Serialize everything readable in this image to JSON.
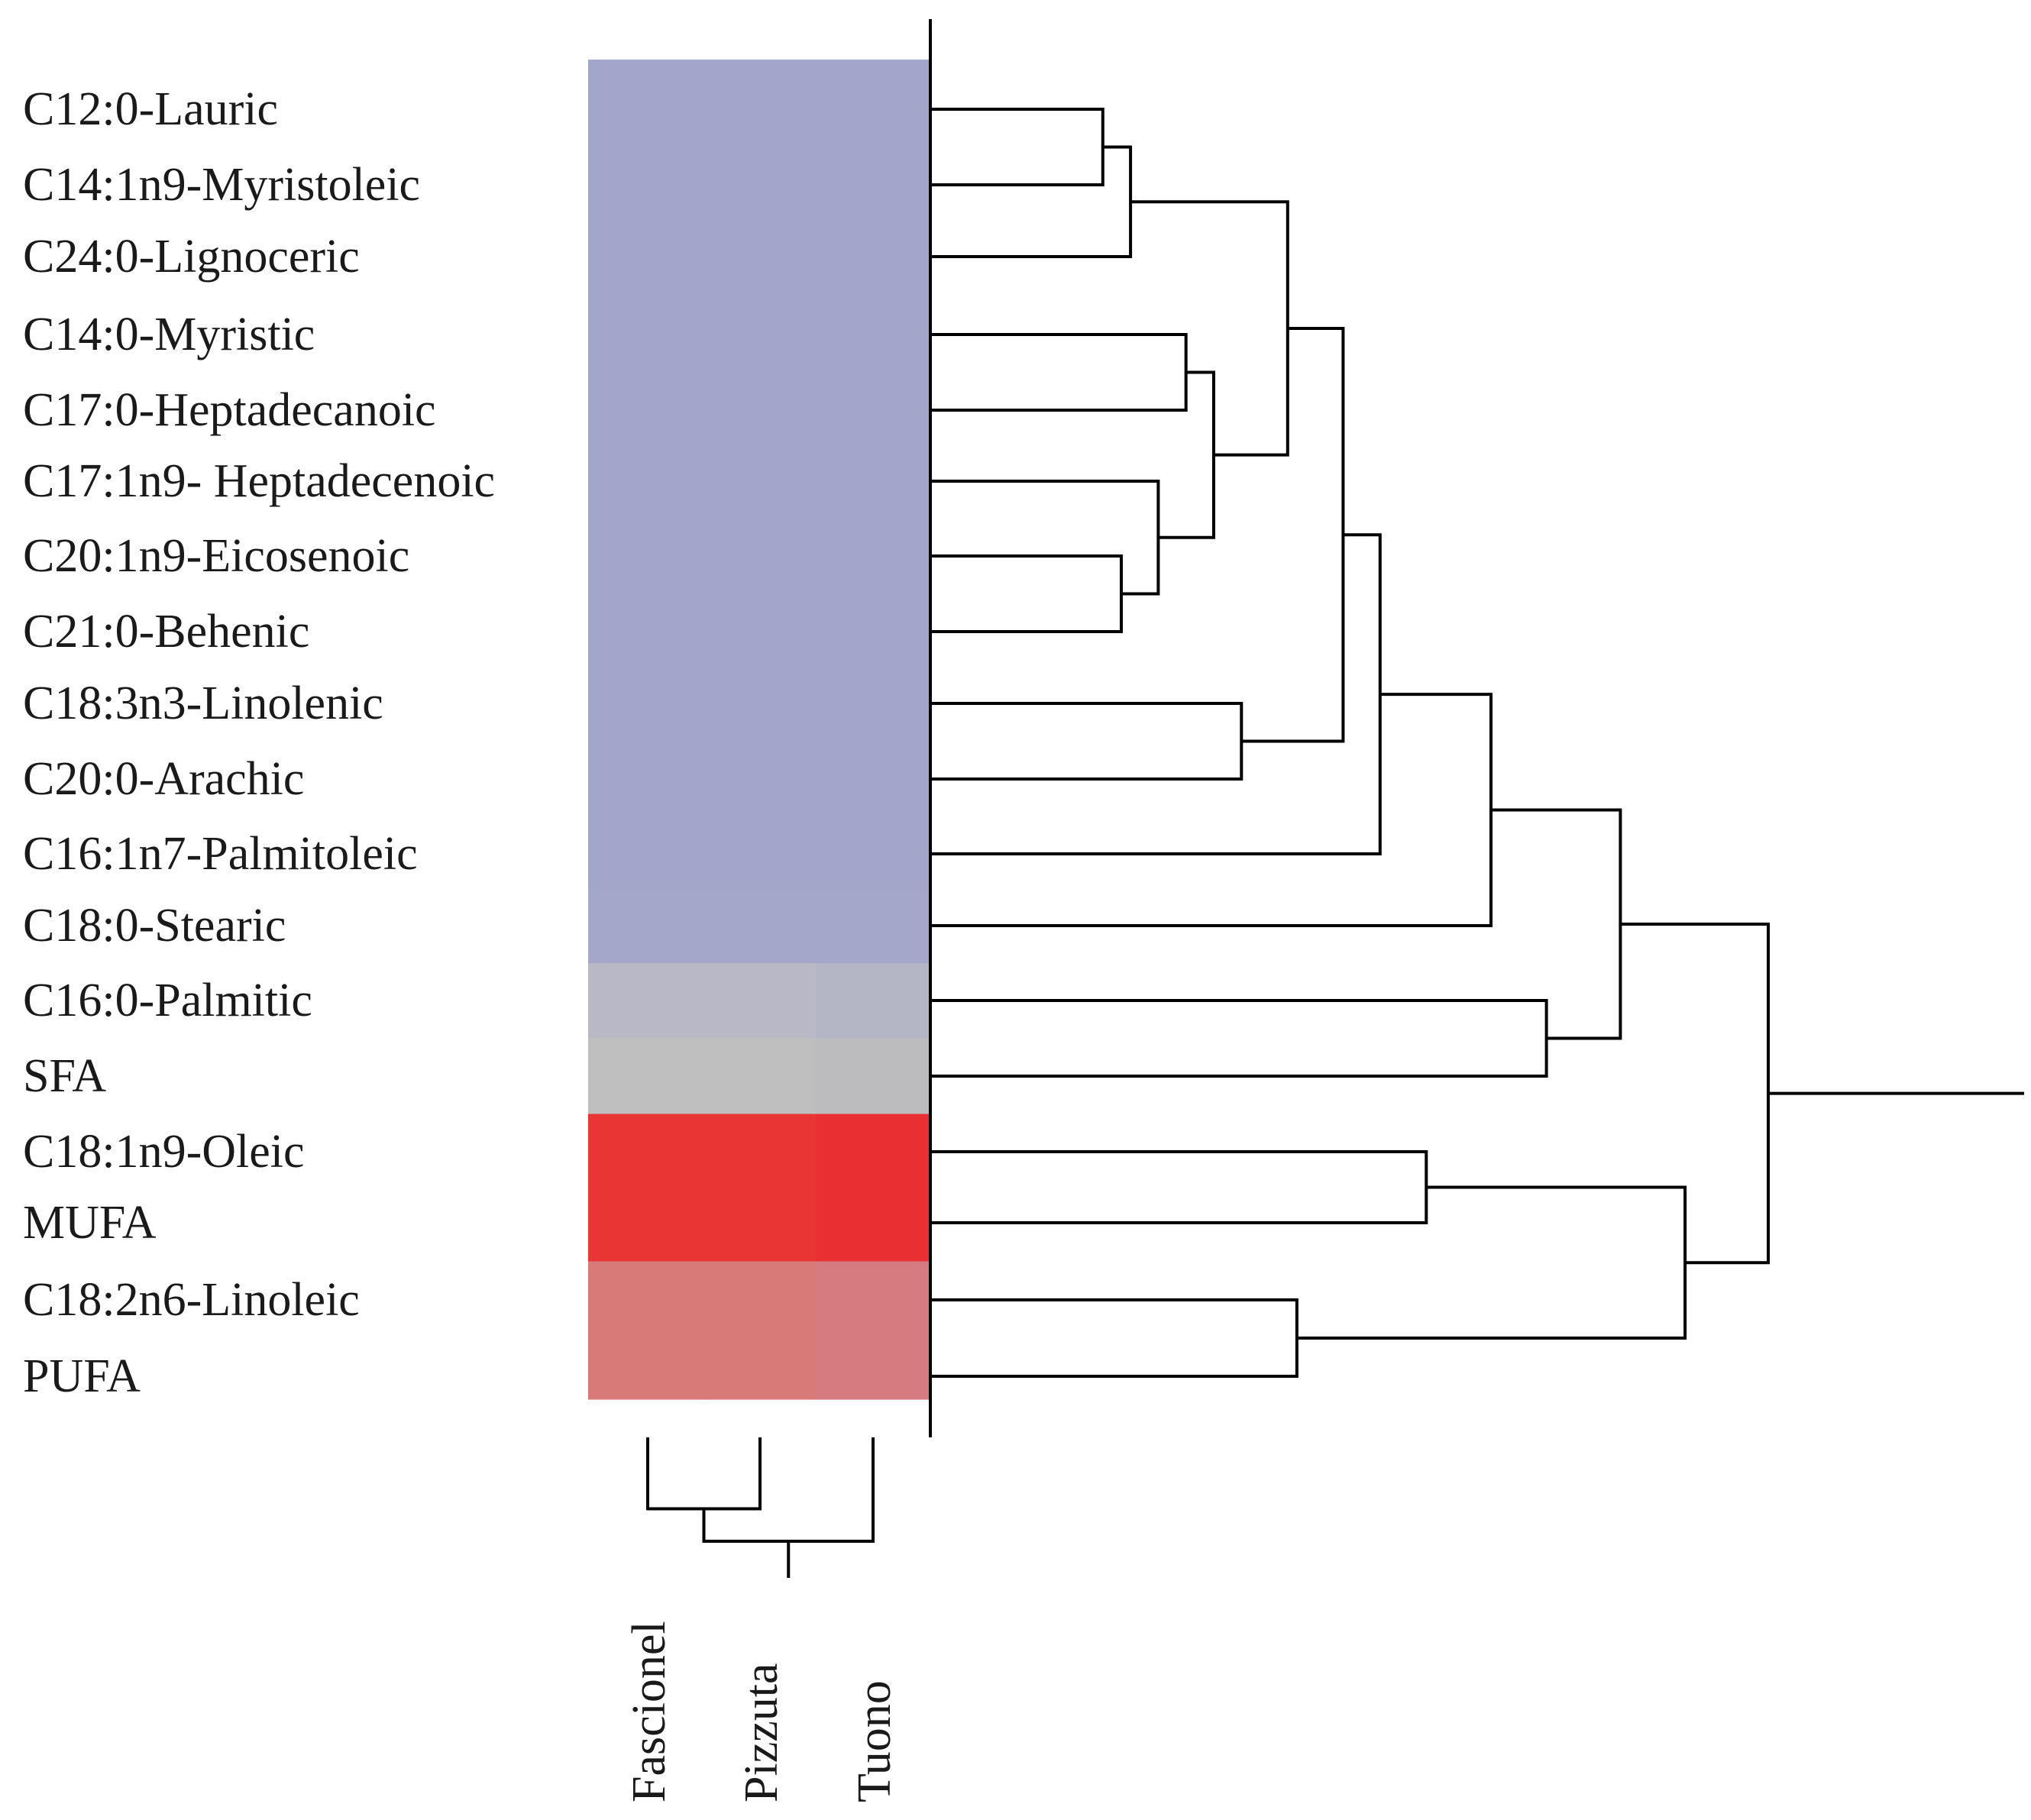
{
  "chart_data": {
    "type": "heatmap",
    "rows": [
      "C12:0-Lauric",
      "C14:1n9-Myristoleic",
      "C24:0-Lignoceric",
      "C14:0-Myristic",
      "C17:0-Heptadecanoic",
      "C17:1n9- Heptadecenoic",
      "C20:1n9-Eicosenoic",
      "C21:0-Behenic",
      "C18:3n3-Linolenic",
      "C20:0-Arachic",
      "C16:1n7-Palmitoleic",
      "C18:0-Stearic",
      "C16:0-Palmitic",
      "SFA",
      "C18:1n9-Oleic",
      "MUFA",
      "C18:2n6-Linoleic",
      "PUFA"
    ],
    "columns": [
      "Fascionel",
      "Pizzuta",
      "Tuono"
    ],
    "cell_colors": [
      [
        "#a3a6cb",
        "#a3a6cb",
        "#a3a6cb"
      ],
      [
        "#a3a6cb",
        "#a3a6cb",
        "#a3a6cb"
      ],
      [
        "#a3a6cb",
        "#a3a6cb",
        "#a3a6cb"
      ],
      [
        "#a3a6cb",
        "#a3a6cb",
        "#a3a6cb"
      ],
      [
        "#a3a6cb",
        "#a3a6cb",
        "#a3a6cb"
      ],
      [
        "#a3a6cb",
        "#a3a6cb",
        "#a3a6cb"
      ],
      [
        "#a3a6cb",
        "#a3a6cb",
        "#a3a6cb"
      ],
      [
        "#a3a6cb",
        "#a3a6cb",
        "#a3a6cb"
      ],
      [
        "#a3a6cb",
        "#a3a6cb",
        "#a3a6cb"
      ],
      [
        "#a3a6cb",
        "#a3a6cb",
        "#a3a6cb"
      ],
      [
        "#a3a6cb",
        "#a3a6cb",
        "#a3a6cb"
      ],
      [
        "#a4a7c9",
        "#a4a7c9",
        "#a4a7c9"
      ],
      [
        "#b8b8c6",
        "#b8b8c6",
        "#b5b6c5"
      ],
      [
        "#bfbfc0",
        "#bfbfc0",
        "#bcbcbf"
      ],
      [
        "#ea3535",
        "#ea3535",
        "#e92f32"
      ],
      [
        "#ea3535",
        "#ea3535",
        "#e92f32"
      ],
      [
        "#d77a78",
        "#d77a78",
        "#d67c80"
      ],
      [
        "#d77a78",
        "#d77a78",
        "#d67c80"
      ]
    ],
    "row_dendrogram": {
      "leaves_in_order": [
        "C12:0-Lauric",
        "C14:1n9-Myristoleic",
        "C24:0-Lignoceric",
        "C14:0-Myristic",
        "C17:0-Heptadecanoic",
        "C17:1n9- Heptadecenoic",
        "C20:1n9-Eicosenoic",
        "C21:0-Behenic",
        "C18:3n3-Linolenic",
        "C20:0-Arachic",
        "C16:1n7-Palmitoleic",
        "C18:0-Stearic",
        "C16:0-Palmitic",
        "SFA",
        "C18:1n9-Oleic",
        "MUFA",
        "C18:2n6-Linoleic",
        "PUFA"
      ],
      "merges": [
        {
          "a": "C12:0-Lauric",
          "b": "C14:1n9-Myristoleic",
          "height": 0.18
        },
        {
          "a": "(C12:0-Lauric,C14:1n9-Myristoleic)",
          "b": "C24:0-Lignoceric",
          "height": 0.21
        },
        {
          "a": "C14:0-Myristic",
          "b": "C17:0-Heptadecanoic",
          "height": 0.27
        },
        {
          "a": "C20:1n9-Eicosenoic",
          "b": "C21:0-Behenic",
          "height": 0.2
        },
        {
          "a": "C17:1n9- Heptadecenoic",
          "b": "(C20:1n9-Eicosenoic,C21:0-Behenic)",
          "height": 0.24
        },
        {
          "a": "(C14:0-Myristic,C17:0-Heptadecanoic)",
          "b": "(C17:1n9- Heptadecenoic,...)",
          "height": 0.3
        },
        {
          "a": "(C12:0-Lauric,...)",
          "b": "(C14:0-Myristic,...)",
          "height": 0.38
        },
        {
          "a": "C18:3n3-Linolenic",
          "b": "C20:0-Arachic",
          "height": 0.33
        },
        {
          "a": "(C12:0-Lauric,...,C21:0-Behenic)",
          "b": "(C18:3n3-Linolenic,C20:0-Arachic)",
          "height": 0.44
        },
        {
          "a": "(C12:0-Lauric,...,C20:0-Arachic)",
          "b": "C16:1n7-Palmitoleic",
          "height": 0.48
        },
        {
          "a": "(C12:0-Lauric,...,C16:1n7-Palmitoleic)",
          "b": "C18:0-Stearic",
          "height": 0.6
        },
        {
          "a": "C16:0-Palmitic",
          "b": "SFA",
          "height": 0.66
        },
        {
          "a": "(C12:0-Lauric,...,C18:0-Stearic)",
          "b": "(C16:0-Palmitic,SFA)",
          "height": 0.74
        },
        {
          "a": "C18:1n9-Oleic",
          "b": "MUFA",
          "height": 0.53
        },
        {
          "a": "C18:2n6-Linoleic",
          "b": "PUFA",
          "height": 0.39
        },
        {
          "a": "(C18:1n9-Oleic,MUFA)",
          "b": "(C18:2n6-Linoleic,PUFA)",
          "height": 0.81
        },
        {
          "a": "(C12:0-Lauric,...,SFA)",
          "b": "(C18:1n9-Oleic,...,PUFA)",
          "height": 0.9
        }
      ]
    },
    "column_dendrogram": {
      "leaves_in_order": [
        "Fascionel",
        "Pizzuta",
        "Tuono"
      ],
      "merges": [
        {
          "a": "Fascionel",
          "b": "Pizzuta",
          "height": 0.55
        },
        {
          "a": "(Fascionel,Pizzuta)",
          "b": "Tuono",
          "height": 0.8
        }
      ]
    },
    "legend": "none"
  }
}
